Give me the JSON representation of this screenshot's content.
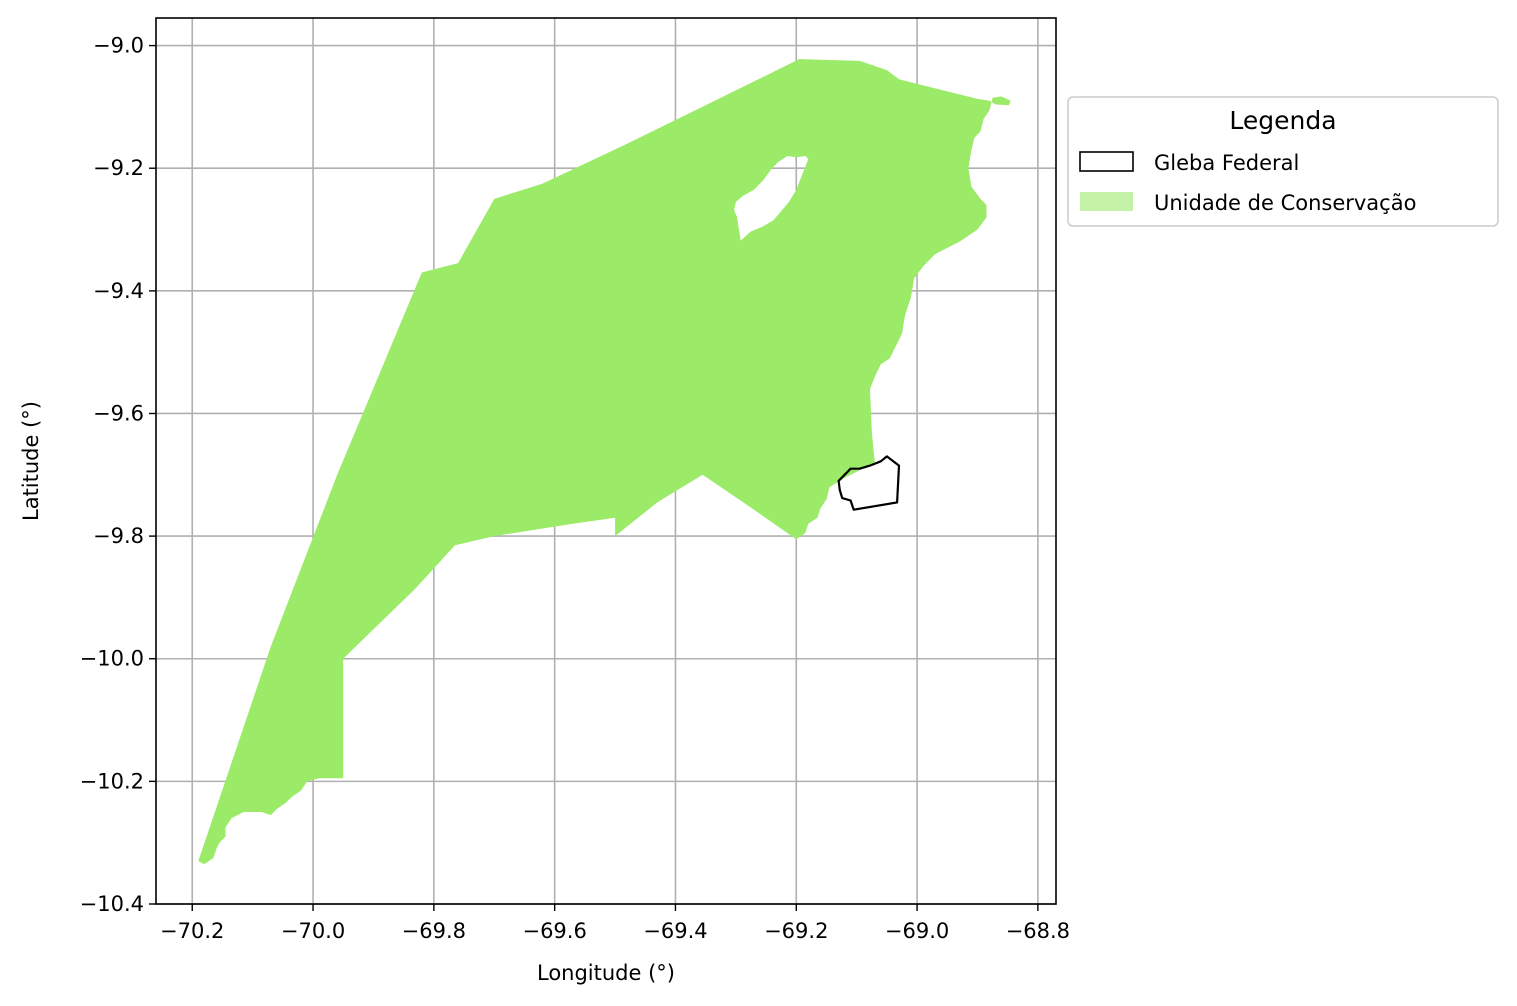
{
  "colors": {
    "gleba_edge": "#000000",
    "uc_fill": "#9bea68",
    "uc_legend_swatch": "#c4f2a6",
    "grid": "#b0b0b0",
    "frame": "#000000"
  },
  "axes": {
    "xlabel": "Longitude (°)",
    "ylabel": "Latitude (°)",
    "xlim": [
      -70.26,
      -68.77
    ],
    "ylim": [
      -10.4,
      -8.955
    ],
    "grid": true,
    "x_ticks": [
      -70.2,
      -70.0,
      -69.8,
      -69.6,
      -69.4,
      -69.2,
      -69.0,
      -68.8
    ],
    "x_tick_labels": [
      "−70.2",
      "−70.0",
      "−69.8",
      "−69.6",
      "−69.4",
      "−69.2",
      "−69.0",
      "−68.8"
    ],
    "y_ticks": [
      -9.0,
      -9.2,
      -9.4,
      -9.6,
      -9.8,
      -10.0,
      -10.2,
      -10.4
    ],
    "y_tick_labels": [
      "−9.0",
      "−9.2",
      "−9.4",
      "−9.6",
      "−9.8",
      "−10.0",
      "−10.2",
      "−10.4"
    ]
  },
  "legend": {
    "title": "Legenda",
    "placement": "outside-upper-right",
    "items": [
      {
        "label": "Gleba Federal",
        "symbol": "outline"
      },
      {
        "label": "Unidade de Conservação",
        "symbol": "fill"
      }
    ]
  },
  "layers": {
    "unidade_de_conservacao": {
      "outer": [
        [
          -70.19,
          -10.33
        ],
        [
          -70.18,
          -10.335
        ],
        [
          -70.165,
          -10.325
        ],
        [
          -70.16,
          -10.31
        ],
        [
          -70.155,
          -10.3
        ],
        [
          -70.145,
          -10.29
        ],
        [
          -70.145,
          -10.275
        ],
        [
          -70.135,
          -10.26
        ],
        [
          -70.125,
          -10.255
        ],
        [
          -70.115,
          -10.25
        ],
        [
          -70.1,
          -10.25
        ],
        [
          -70.085,
          -10.25
        ],
        [
          -70.07,
          -10.255
        ],
        [
          -70.06,
          -10.245
        ],
        [
          -70.045,
          -10.235
        ],
        [
          -70.035,
          -10.225
        ],
        [
          -70.02,
          -10.215
        ],
        [
          -70.01,
          -10.2
        ],
        [
          -69.99,
          -10.195
        ],
        [
          -69.95,
          -10.195
        ],
        [
          -69.95,
          -10.0
        ],
        [
          -69.83,
          -9.885
        ],
        [
          -69.765,
          -9.815
        ],
        [
          -69.7,
          -9.8
        ],
        [
          -69.57,
          -9.78
        ],
        [
          -69.5,
          -9.77
        ],
        [
          -69.5,
          -9.8
        ],
        [
          -69.43,
          -9.745
        ],
        [
          -69.355,
          -9.7
        ],
        [
          -69.28,
          -9.75
        ],
        [
          -69.2,
          -9.805
        ],
        [
          -69.185,
          -9.795
        ],
        [
          -69.18,
          -9.78
        ],
        [
          -69.165,
          -9.77
        ],
        [
          -69.16,
          -9.755
        ],
        [
          -69.15,
          -9.74
        ],
        [
          -69.145,
          -9.72
        ],
        [
          -69.12,
          -9.705
        ],
        [
          -69.1,
          -9.695
        ],
        [
          -69.07,
          -9.68
        ],
        [
          -69.075,
          -9.63
        ],
        [
          -69.078,
          -9.56
        ],
        [
          -69.07,
          -9.54
        ],
        [
          -69.06,
          -9.52
        ],
        [
          -69.045,
          -9.51
        ],
        [
          -69.035,
          -9.49
        ],
        [
          -69.025,
          -9.47
        ],
        [
          -69.02,
          -9.44
        ],
        [
          -69.01,
          -9.41
        ],
        [
          -69.005,
          -9.38
        ],
        [
          -68.99,
          -9.36
        ],
        [
          -68.97,
          -9.34
        ],
        [
          -68.95,
          -9.33
        ],
        [
          -68.93,
          -9.32
        ],
        [
          -68.915,
          -9.31
        ],
        [
          -68.9,
          -9.3
        ],
        [
          -68.885,
          -9.28
        ],
        [
          -68.885,
          -9.26
        ],
        [
          -68.895,
          -9.25
        ],
        [
          -68.91,
          -9.23
        ],
        [
          -68.915,
          -9.2
        ],
        [
          -68.91,
          -9.17
        ],
        [
          -68.905,
          -9.15
        ],
        [
          -68.895,
          -9.14
        ],
        [
          -68.89,
          -9.12
        ],
        [
          -68.88,
          -9.105
        ],
        [
          -68.875,
          -9.085
        ],
        [
          -68.86,
          -9.083
        ],
        [
          -68.845,
          -9.09
        ],
        [
          -68.848,
          -9.097
        ],
        [
          -68.87,
          -9.096
        ],
        [
          -68.88,
          -9.09
        ],
        [
          -68.9,
          -9.087
        ],
        [
          -68.99,
          -9.065
        ],
        [
          -69.03,
          -9.055
        ],
        [
          -69.05,
          -9.04
        ],
        [
          -69.095,
          -9.025
        ],
        [
          -69.195,
          -9.022
        ],
        [
          -69.335,
          -9.09
        ],
        [
          -69.48,
          -9.16
        ],
        [
          -69.62,
          -9.225
        ],
        [
          -69.7,
          -9.25
        ],
        [
          -69.76,
          -9.355
        ],
        [
          -69.78,
          -9.36
        ],
        [
          -69.82,
          -9.37
        ],
        [
          -69.96,
          -9.7
        ],
        [
          -70.07,
          -9.98
        ],
        [
          -70.19,
          -10.33
        ]
      ],
      "holes": [
        [
          [
            -69.292,
            -9.318
          ],
          [
            -69.275,
            -9.303
          ],
          [
            -69.255,
            -9.295
          ],
          [
            -69.238,
            -9.285
          ],
          [
            -69.225,
            -9.27
          ],
          [
            -69.212,
            -9.255
          ],
          [
            -69.2,
            -9.235
          ],
          [
            -69.19,
            -9.21
          ],
          [
            -69.18,
            -9.185
          ],
          [
            -69.185,
            -9.18
          ],
          [
            -69.2,
            -9.182
          ],
          [
            -69.215,
            -9.18
          ],
          [
            -69.23,
            -9.19
          ],
          [
            -69.24,
            -9.2
          ],
          [
            -69.255,
            -9.22
          ],
          [
            -69.27,
            -9.235
          ],
          [
            -69.288,
            -9.245
          ],
          [
            -69.3,
            -9.255
          ],
          [
            -69.303,
            -9.268
          ],
          [
            -69.298,
            -9.28
          ],
          [
            -69.292,
            -9.318
          ]
        ]
      ]
    },
    "gleba_federal": {
      "outline": [
        [
          -69.105,
          -9.757
        ],
        [
          -69.033,
          -9.745
        ],
        [
          -69.03,
          -9.685
        ],
        [
          -69.05,
          -9.67
        ],
        [
          -69.06,
          -9.678
        ],
        [
          -69.078,
          -9.685
        ],
        [
          -69.095,
          -9.69
        ],
        [
          -69.11,
          -9.69
        ],
        [
          -69.12,
          -9.7
        ],
        [
          -69.13,
          -9.71
        ],
        [
          -69.128,
          -9.725
        ],
        [
          -69.124,
          -9.738
        ],
        [
          -69.11,
          -9.742
        ],
        [
          -69.105,
          -9.757
        ]
      ]
    }
  }
}
